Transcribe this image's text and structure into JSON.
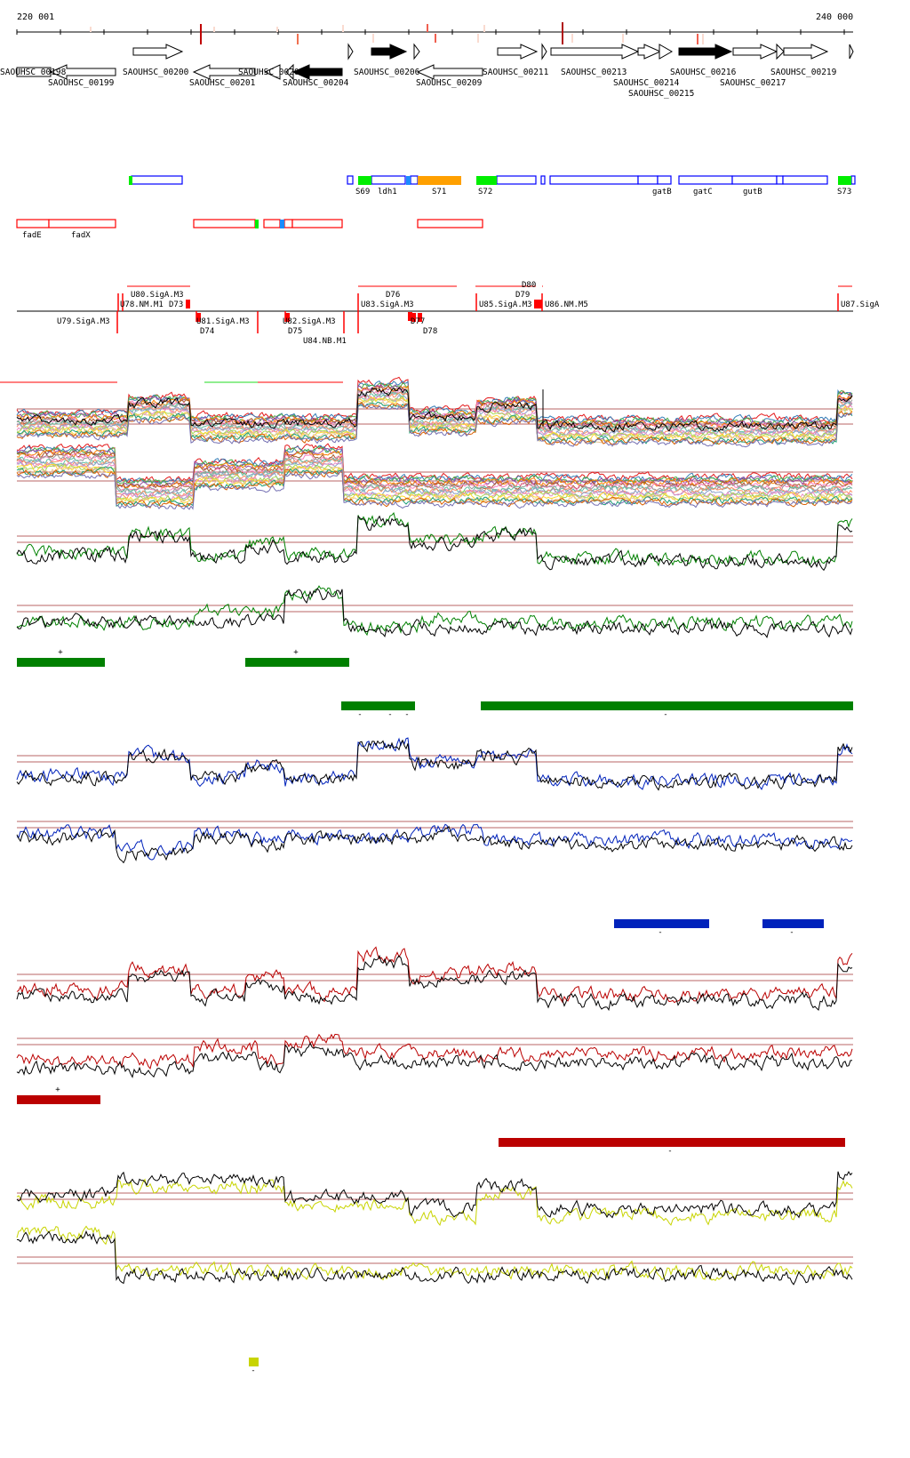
{
  "ruler": {
    "start_label": "220 001",
    "end_label": "240 000"
  },
  "genes": [
    "SAOUHSC_00198",
    "SAOUHSC_00199",
    "SAOUHSC_00200",
    "SAOUHSC_00201",
    "SAOUHSC_00202",
    "SAOUHSC_00204",
    "SAOUHSC_00206",
    "SAOUHSC_00209",
    "SAOUHSC_00211",
    "SAOUHSC_00213",
    "SAOUHSC_00214",
    "SAOUHSC_00215",
    "SAOUHSC_00216",
    "SAOUHSC_00217",
    "SAOUHSC_00219"
  ],
  "annotations_forward": [
    "S69",
    "ldh1",
    "S71",
    "S72",
    "gatB",
    "gatC",
    "gutB",
    "S73"
  ],
  "annotations_reverse": [
    "fadE",
    "fadX"
  ],
  "regulatory_labels": [
    "U78.NM.M1",
    "U80.SigA.M3",
    "D73",
    "U79.SigA.M3",
    "D74",
    "U81.SigA.M3",
    "D75",
    "U82.SigA.M3",
    "U84.NB.M1",
    "U83.SigA.M3",
    "D76",
    "D77",
    "D78",
    "U85.SigA.M3",
    "D79",
    "D80",
    "U86.NM.M5",
    "U87.SigA"
  ],
  "segment_markers": {
    "green": [
      "+",
      "+",
      "-",
      "-",
      "-",
      "-"
    ],
    "blue": [
      "-",
      "-"
    ],
    "red": [
      "+",
      "-"
    ],
    "yellow": [
      "-"
    ]
  },
  "colors": {
    "forward_box": "#0000ff",
    "reverse_box": "#ff0000",
    "green": "#008000",
    "blue": "#0022bb",
    "red": "#bb0000",
    "yellow": "#c8d400",
    "orange": "#ffa000",
    "lime": "#00ee00",
    "cyan": "#1a8cff"
  }
}
